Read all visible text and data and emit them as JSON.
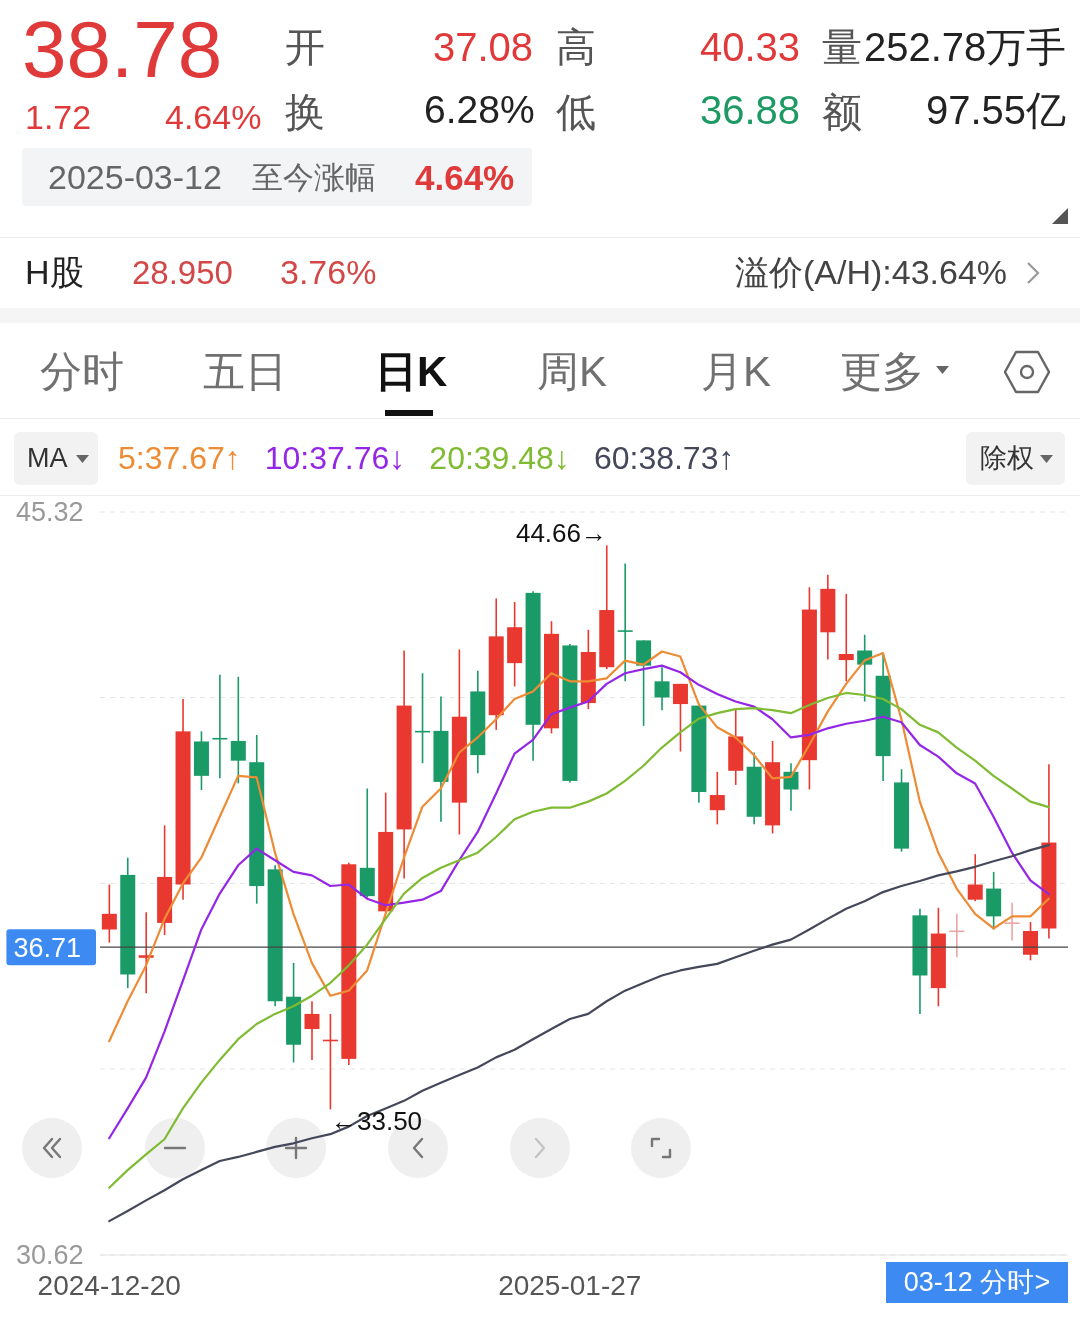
{
  "chart_data": {
    "type": "candlestick",
    "categories": [
      "2024-12-20",
      null,
      null,
      null,
      null,
      null,
      null,
      null,
      null,
      null,
      null,
      null,
      null,
      null,
      null,
      null,
      null,
      null,
      null,
      null,
      null,
      null,
      null,
      null,
      null,
      "2025-01-27",
      null,
      null,
      null,
      null,
      null,
      null,
      null,
      null,
      null,
      null,
      null,
      null,
      null,
      null,
      null,
      null,
      null,
      null,
      null,
      null,
      null,
      null,
      null,
      null,
      null,
      null
    ],
    "ohlc": [
      [
        37.06,
        37.95,
        36.8,
        37.37
      ],
      [
        38.14,
        38.48,
        35.9,
        36.17
      ],
      [
        36.5,
        37.4,
        35.8,
        36.55
      ],
      [
        37.19,
        39.12,
        36.95,
        38.1
      ],
      [
        37.95,
        41.62,
        37.65,
        40.98
      ],
      [
        40.78,
        40.98,
        39.82,
        40.1
      ],
      [
        40.85,
        42.1,
        40.05,
        40.82
      ],
      [
        40.79,
        42.06,
        39.95,
        40.4
      ],
      [
        40.37,
        40.91,
        37.57,
        37.92
      ],
      [
        38.25,
        38.33,
        35.54,
        35.64
      ],
      [
        35.73,
        36.4,
        34.43,
        34.78
      ],
      [
        35.09,
        35.64,
        34.48,
        35.39
      ],
      [
        34.86,
        35.39,
        33.5,
        34.88
      ],
      [
        34.5,
        38.38,
        34.38,
        38.35
      ],
      [
        38.28,
        39.85,
        37.69,
        37.72
      ],
      [
        37.42,
        39.77,
        37.37,
        38.99
      ],
      [
        39.04,
        42.58,
        38.07,
        41.49
      ],
      [
        40.99,
        42.13,
        40.35,
        40.97
      ],
      [
        40.99,
        41.67,
        39.19,
        39.98
      ],
      [
        39.57,
        42.6,
        38.94,
        41.27
      ],
      [
        41.77,
        42.18,
        40.15,
        40.51
      ],
      [
        41.3,
        43.61,
        41.01,
        42.86
      ],
      [
        42.33,
        43.54,
        41.87,
        43.04
      ],
      [
        43.72,
        43.75,
        40.4,
        41.11
      ],
      [
        41.04,
        43.16,
        40.94,
        42.91
      ],
      [
        42.68,
        42.71,
        39.97,
        40.0
      ],
      [
        41.54,
        42.99,
        41.42,
        42.55
      ],
      [
        42.25,
        44.66,
        42.21,
        43.38
      ],
      [
        42.98,
        44.3,
        41.97,
        42.96
      ],
      [
        42.78,
        42.78,
        41.09,
        42.28
      ],
      [
        41.97,
        42.25,
        41.4,
        41.65
      ],
      [
        41.52,
        41.92,
        40.58,
        41.92
      ],
      [
        41.49,
        41.49,
        39.57,
        39.78
      ],
      [
        39.42,
        40.18,
        39.14,
        39.72
      ],
      [
        40.2,
        41.42,
        39.92,
        40.88
      ],
      [
        40.28,
        40.56,
        39.14,
        39.29
      ],
      [
        39.12,
        40.79,
        38.96,
        40.37
      ],
      [
        40.18,
        40.35,
        39.41,
        39.83
      ],
      [
        40.41,
        43.83,
        39.83,
        43.39
      ],
      [
        42.94,
        44.08,
        42.4,
        43.8
      ],
      [
        42.39,
        43.7,
        41.97,
        42.51
      ],
      [
        42.58,
        42.89,
        41.57,
        42.3
      ],
      [
        42.08,
        42.53,
        40.0,
        40.49
      ],
      [
        39.97,
        40.23,
        38.6,
        38.66
      ],
      [
        37.34,
        37.47,
        35.39,
        36.15
      ],
      [
        35.9,
        37.49,
        35.54,
        36.98
      ],
      [
        37.02,
        37.37,
        36.51,
        37.04
      ],
      [
        37.65,
        38.55,
        37.62,
        37.95
      ],
      [
        37.87,
        38.2,
        37.06,
        37.32
      ],
      [
        37.18,
        37.59,
        36.84,
        37.2
      ],
      [
        36.56,
        37.21,
        36.45,
        37.03
      ],
      [
        37.08,
        40.33,
        36.88,
        38.78
      ]
    ],
    "colors": [
      "#e8382f",
      "#1a9a66",
      "#e8382f",
      "#e8382f",
      "#e8382f",
      "#1a9a66",
      "#1a9a66",
      "#1a9a66",
      "#1a9a66",
      "#1a9a66",
      "#1a9a66",
      "#e8382f",
      "#e8382f",
      "#e8382f",
      "#1a9a66",
      "#e8382f",
      "#e8382f",
      "#1a9a66",
      "#1a9a66",
      "#e8382f",
      "#1a9a66",
      "#e8382f",
      "#e8382f",
      "#1a9a66",
      "#e8382f",
      "#1a9a66",
      "#e8382f",
      "#e8382f",
      "#1a9a66",
      "#1a9a66",
      "#1a9a66",
      "#e8382f",
      "#1a9a66",
      "#e8382f",
      "#e8382f",
      "#1a9a66",
      "#e8382f",
      "#1a9a66",
      "#e8382f",
      "#e8382f",
      "#e8382f",
      "#1a9a66",
      "#1a9a66",
      "#1a9a66",
      "#1a9a66",
      "#e8382f",
      "#eba5a5",
      "#e8382f",
      "#1a9a66",
      "#eba5a5",
      "#e8382f",
      "#e8382f"
    ],
    "series": [
      {
        "name": "5:37.67↑",
        "type": "line",
        "color": "#ee8b35",
        "values": [
          34.85,
          35.64,
          36.35,
          37.27,
          37.97,
          38.48,
          39.29,
          40.1,
          40.07,
          38.58,
          37.37,
          36.4,
          35.75,
          35.85,
          36.25,
          37.37,
          38.48,
          39.49,
          39.85,
          40.56,
          40.86,
          41.22,
          41.62,
          41.77,
          42.13,
          41.97,
          41.97,
          42.03,
          42.38,
          42.3,
          42.56,
          42.46,
          41.52,
          41.06,
          40.86,
          40.51,
          40.05,
          40.08,
          40.71,
          41.37,
          41.92,
          42.38,
          42.53,
          41.22,
          39.59,
          38.58,
          37.87,
          37.37,
          37.08,
          37.32,
          37.32,
          37.67
        ]
      },
      {
        "name": "10:37.76↓",
        "type": "line",
        "color": "#9427e6",
        "values": [
          32.93,
          33.52,
          34.13,
          35.04,
          36.05,
          37.06,
          37.77,
          38.33,
          38.66,
          38.43,
          38.2,
          38.13,
          37.92,
          37.95,
          37.67,
          37.54,
          37.59,
          37.65,
          37.82,
          38.43,
          38.99,
          39.75,
          40.54,
          40.81,
          41.32,
          41.45,
          41.57,
          41.92,
          42.13,
          42.21,
          42.28,
          42.15,
          41.9,
          41.72,
          41.57,
          41.47,
          41.22,
          40.86,
          40.91,
          41.04,
          41.13,
          41.19,
          41.27,
          41.16,
          40.71,
          40.48,
          40.15,
          39.95,
          39.29,
          38.58,
          38.03,
          37.76
        ]
      },
      {
        "name": "20:39.48↓",
        "type": "line",
        "color": "#7fbb33",
        "values": [
          31.95,
          32.3,
          32.61,
          32.91,
          33.52,
          34.03,
          34.48,
          34.89,
          35.19,
          35.39,
          35.54,
          35.75,
          36.0,
          36.35,
          36.76,
          37.27,
          37.77,
          38.08,
          38.28,
          38.43,
          38.58,
          38.89,
          39.24,
          39.39,
          39.47,
          39.47,
          39.59,
          39.75,
          40.0,
          40.3,
          40.66,
          40.96,
          41.23,
          41.34,
          41.42,
          41.44,
          41.4,
          41.34,
          41.5,
          41.64,
          41.74,
          41.7,
          41.62,
          41.42,
          41.11,
          40.96,
          40.66,
          40.4,
          40.1,
          39.85,
          39.59,
          39.48
        ]
      },
      {
        "name": "60:38.73↑",
        "type": "line",
        "color": "#44485a",
        "values": [
          31.29,
          31.49,
          31.7,
          31.9,
          32.12,
          32.3,
          32.48,
          32.56,
          32.66,
          32.76,
          32.83,
          32.93,
          33.01,
          33.16,
          33.37,
          33.52,
          33.67,
          33.87,
          34.03,
          34.18,
          34.33,
          34.53,
          34.68,
          34.89,
          35.09,
          35.29,
          35.39,
          35.64,
          35.85,
          36.0,
          36.15,
          36.25,
          36.32,
          36.38,
          36.51,
          36.64,
          36.76,
          36.86,
          37.06,
          37.27,
          37.47,
          37.62,
          37.8,
          37.92,
          38.02,
          38.13,
          38.21,
          38.3,
          38.41,
          38.51,
          38.63,
          38.73
        ]
      }
    ],
    "ylim": [
      30.62,
      45.32
    ],
    "yticks": [
      30.62,
      {
        "value": 34.3,
        "label": null
      },
      {
        "value": 37.97,
        "label": null
      },
      {
        "value": 41.65,
        "label": null
      },
      45.32
    ],
    "grid": "y",
    "legend": "top left",
    "marker": "none",
    "ref_lines": [
      {
        "axis": "y",
        "value": 36.71,
        "label": "36.71",
        "color": "#444444"
      }
    ],
    "annotations": [
      "38.78",
      "1.72",
      "4.64%",
      "开",
      "37.08",
      "换",
      "6.28%",
      "高",
      "40.33",
      "低",
      "36.88",
      "量",
      "252.78万手",
      "额",
      "97.55亿",
      "2025-03-12",
      "至今涨幅",
      "4.64%",
      "H股",
      "28.950",
      "3.76%",
      "溢价(A/H):43.64%",
      "分时",
      "五日",
      "日K",
      "周K",
      "月K",
      "更多",
      "MA",
      "除权",
      "44.66→",
      "←33.50",
      "03-12 分时>"
    ]
  }
}
